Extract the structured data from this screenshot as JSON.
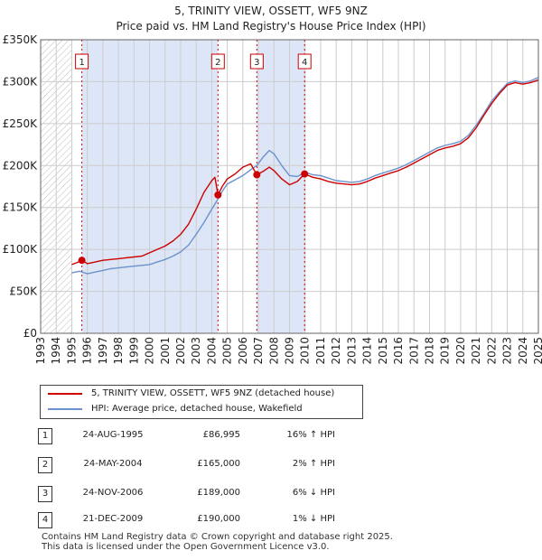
{
  "header": {
    "title": "5, TRINITY VIEW, OSSETT, WF5 9NZ",
    "subtitle": "Price paid vs. HM Land Registry's House Price Index (HPI)"
  },
  "colors": {
    "property_line": "#cc0000",
    "hpi_line": "#6a92cc",
    "shade": "#dde6f7",
    "sale_marker": "#cc0000",
    "grid": "#cccccc"
  },
  "legend": {
    "property_label": "5, TRINITY VIEW, OSSETT, WF5 9NZ (detached house)",
    "hpi_label": "HPI: Average price, detached house, Wakefield"
  },
  "sales": [
    {
      "num": "1",
      "date": "24-AUG-1995",
      "price": "£86,995",
      "hpi": "16% ↑ HPI"
    },
    {
      "num": "2",
      "date": "24-MAY-2004",
      "price": "£165,000",
      "hpi": "2% ↑ HPI"
    },
    {
      "num": "3",
      "date": "24-NOV-2006",
      "price": "£189,000",
      "hpi": "6% ↓ HPI"
    },
    {
      "num": "4",
      "date": "21-DEC-2009",
      "price": "£190,000",
      "hpi": "1% ↓ HPI"
    }
  ],
  "footer": {
    "line1": "Contains HM Land Registry data © Crown copyright and database right 2025.",
    "line2": "This data is licensed under the Open Government Licence v3.0."
  },
  "chart_data": {
    "type": "line",
    "title": "5, TRINITY VIEW, OSSETT, WF5 9NZ",
    "subtitle": "Price paid vs. HM Land Registry's House Price Index (HPI)",
    "xlim": [
      1993,
      2025
    ],
    "ylim": [
      0,
      350000
    ],
    "x_ticks": [
      1993,
      1994,
      1995,
      1996,
      1997,
      1998,
      1999,
      2000,
      2001,
      2002,
      2003,
      2004,
      2005,
      2006,
      2007,
      2008,
      2009,
      2010,
      2011,
      2012,
      2013,
      2014,
      2015,
      2016,
      2017,
      2018,
      2019,
      2020,
      2021,
      2022,
      2023,
      2024,
      2025
    ],
    "y_ticks": [
      {
        "value": 0,
        "label": "£0"
      },
      {
        "value": 50000,
        "label": "£50K"
      },
      {
        "value": 100000,
        "label": "£100K"
      },
      {
        "value": 150000,
        "label": "£150K"
      },
      {
        "value": 200000,
        "label": "£200K"
      },
      {
        "value": 250000,
        "label": "£250K"
      },
      {
        "value": 300000,
        "label": "£300K"
      },
      {
        "value": 350000,
        "label": "£350K"
      }
    ],
    "grid": true,
    "hatched_until": 1995.0,
    "shaded_ranges": [
      [
        1995.65,
        2004.4
      ],
      [
        2006.9,
        2009.97
      ]
    ],
    "sale_points": [
      {
        "label": "1",
        "x": 1995.65,
        "y": 86995
      },
      {
        "label": "2",
        "x": 2004.4,
        "y": 165000
      },
      {
        "label": "3",
        "x": 2006.9,
        "y": 189000
      },
      {
        "label": "4",
        "x": 2009.97,
        "y": 190000
      }
    ],
    "series": [
      {
        "name": "HPI: Average price, detached house, Wakefield",
        "x": [
          1995.0,
          1995.5,
          1996.0,
          1996.5,
          1997.0,
          1997.5,
          1998.0,
          1998.5,
          1999.0,
          1999.5,
          2000.0,
          2000.5,
          2001.0,
          2001.5,
          2002.0,
          2002.5,
          2003.0,
          2003.5,
          2004.0,
          2004.4,
          2004.7,
          2005.0,
          2005.5,
          2006.0,
          2006.5,
          2006.9,
          2007.3,
          2007.7,
          2008.0,
          2008.5,
          2009.0,
          2009.5,
          2010.0,
          2010.5,
          2011.0,
          2011.5,
          2012.0,
          2012.5,
          2013.0,
          2013.5,
          2014.0,
          2014.5,
          2015.0,
          2015.5,
          2016.0,
          2016.5,
          2017.0,
          2017.5,
          2018.0,
          2018.5,
          2019.0,
          2019.5,
          2020.0,
          2020.5,
          2021.0,
          2021.5,
          2022.0,
          2022.5,
          2023.0,
          2023.5,
          2024.0,
          2024.5,
          2025.0
        ],
        "values": [
          72000,
          74000,
          71000,
          73000,
          75000,
          77000,
          78000,
          79000,
          80000,
          81000,
          82000,
          85000,
          88000,
          92000,
          97000,
          105000,
          118000,
          132000,
          148000,
          160000,
          170000,
          178000,
          183000,
          188000,
          195000,
          200000,
          210000,
          218000,
          214000,
          200000,
          188000,
          187000,
          192000,
          189000,
          188000,
          185000,
          182000,
          181000,
          180000,
          181000,
          184000,
          188000,
          191000,
          194000,
          197000,
          201000,
          206000,
          211000,
          216000,
          221000,
          224000,
          226000,
          229000,
          236000,
          248000,
          262000,
          277000,
          288000,
          298000,
          301000,
          299000,
          301000,
          305000
        ]
      },
      {
        "name": "5, TRINITY VIEW, OSSETT, WF5 9NZ (detached house)",
        "x": [
          1995.0,
          1995.3,
          1995.65,
          1996.0,
          1996.5,
          1997.0,
          1997.5,
          1998.0,
          1998.5,
          1999.0,
          1999.5,
          2000.0,
          2000.5,
          2001.0,
          2001.5,
          2002.0,
          2002.5,
          2003.0,
          2003.5,
          2004.0,
          2004.2,
          2004.4,
          2004.7,
          2005.0,
          2005.5,
          2006.0,
          2006.5,
          2006.9,
          2007.3,
          2007.7,
          2008.0,
          2008.5,
          2009.0,
          2009.5,
          2009.97,
          2010.5,
          2011.0,
          2011.5,
          2012.0,
          2012.5,
          2013.0,
          2013.5,
          2014.0,
          2014.5,
          2015.0,
          2015.5,
          2016.0,
          2016.5,
          2017.0,
          2017.5,
          2018.0,
          2018.5,
          2019.0,
          2019.5,
          2020.0,
          2020.5,
          2021.0,
          2021.5,
          2022.0,
          2022.5,
          2023.0,
          2023.5,
          2024.0,
          2024.5,
          2025.0
        ],
        "values": [
          82000,
          84000,
          86995,
          83000,
          85000,
          87000,
          88000,
          89000,
          90000,
          91000,
          92000,
          96000,
          100000,
          104000,
          110000,
          118000,
          130000,
          148000,
          168000,
          182000,
          186000,
          165000,
          176000,
          184000,
          190000,
          198000,
          202000,
          189000,
          193000,
          198000,
          194000,
          184000,
          177000,
          181000,
          190000,
          186000,
          184000,
          181000,
          179000,
          178000,
          177000,
          178000,
          181000,
          185000,
          188000,
          191000,
          194000,
          198000,
          203000,
          208000,
          213000,
          218000,
          221000,
          223000,
          226000,
          233000,
          245000,
          260000,
          274000,
          286000,
          296000,
          299000,
          297000,
          299000,
          302000
        ]
      }
    ]
  }
}
